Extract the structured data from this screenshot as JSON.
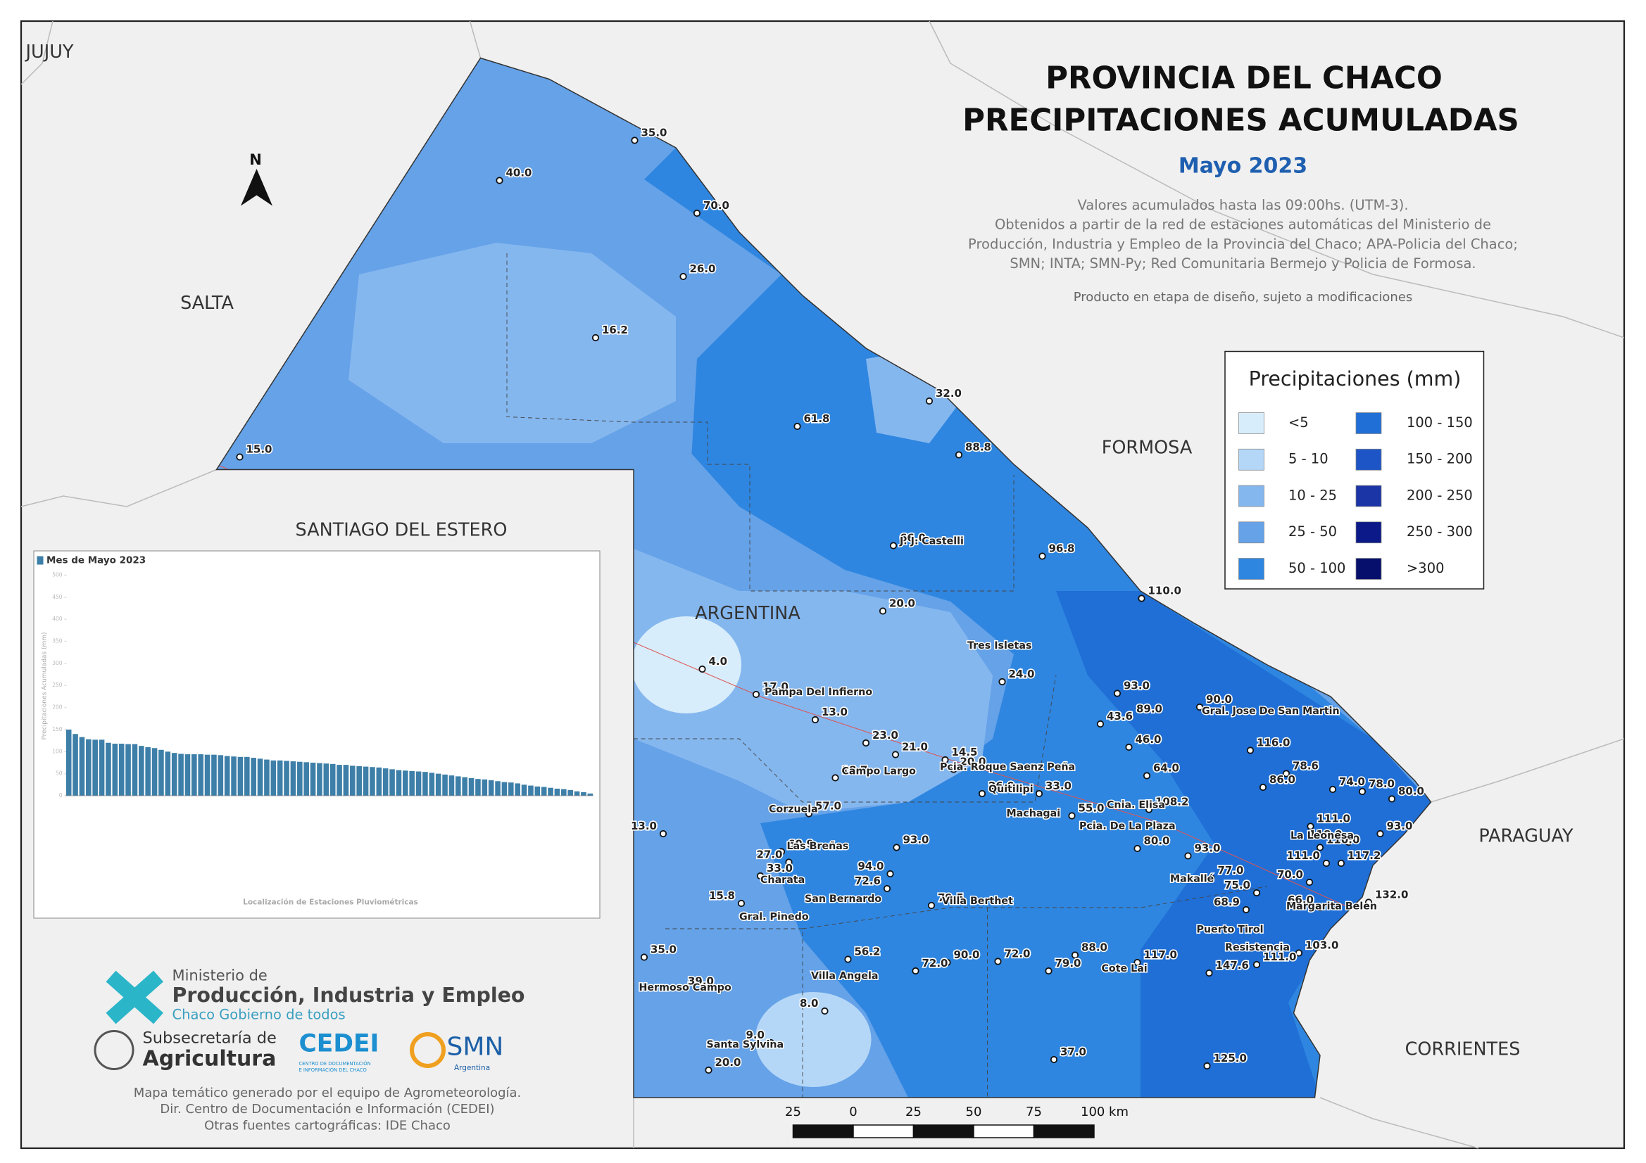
{
  "map": {
    "title": [
      "PROVINCIA DEL CHACO",
      "PRECIPITACIONES ACUMULADAS"
    ],
    "month": "Mayo 2023",
    "notes": [
      "Valores acumulados hasta las 09:00hs. (UTM-3).",
      "Obtenidos a partir de la red de estaciones automáticas del Ministerio de",
      "Producción, Industria y Empleo de la Provincia del Chaco; APA-Policia del Chaco;",
      "SMN; INTA; SMN-Py; Red Comunitaria Bermejo y Policia de Formosa."
    ],
    "disclaimer": "Producto en etapa de diseño, sujeto a modificaciones",
    "north": "N",
    "legend": {
      "title": "Precipitaciones (mm)",
      "items": [
        {
          "label": "<5",
          "color": "#d8edfb"
        },
        {
          "label": "5 - 10",
          "color": "#b5d7f7"
        },
        {
          "label": "10 - 25",
          "color": "#85b7ef"
        },
        {
          "label": "25 - 50",
          "color": "#65a2e8"
        },
        {
          "label": "50 - 100",
          "color": "#2f86e0"
        },
        {
          "label": "100 - 150",
          "color": "#1f6fd6"
        },
        {
          "label": "150 - 200",
          "color": "#1d55c6"
        },
        {
          "label": "200 - 250",
          "color": "#1b34a6"
        },
        {
          "label": "250 - 300",
          "color": "#0b1a88"
        },
        {
          "label": ">300",
          "color": "#06106c"
        }
      ]
    },
    "regions": [
      "JUJUY",
      "SALTA",
      "SANTIAGO DEL ESTERO",
      "ARGENTINA",
      "FORMOSA",
      "PARAGUAY",
      "CORRIENTES"
    ],
    "stations": [
      "35.0",
      "40.0",
      "70.0",
      "26.0",
      "16.2",
      "15.0",
      "61.8",
      "32.0",
      "88.8",
      "66.0",
      "96.8",
      "110.0",
      "20.0",
      "4.0",
      "17.0",
      "13.0",
      "24.0",
      "93.0",
      "89.0",
      "90.0",
      "43.6",
      "116.0",
      "46.0",
      "78.6",
      "86.0",
      "64.0",
      "23.0",
      "21.0",
      "14.5",
      "20.0",
      "18.7",
      "26.0",
      "33.0",
      "108.2",
      "55.0",
      "57.0",
      "74.0",
      "78.0",
      "80.0",
      "111.0",
      "118.0",
      "93.0",
      "110.0",
      "117.2",
      "111.0",
      "70.0",
      "80.0",
      "93.0",
      "77.0",
      "75.0",
      "68.9",
      "66.0",
      "132.0",
      "93.0",
      "60.9",
      "27.0",
      "13.0",
      "33.0",
      "15.8",
      "94.0",
      "72.6",
      "79.5",
      "103.0",
      "111.0",
      "147.6",
      "117.0",
      "88.0",
      "79.0",
      "72.0",
      "90.0",
      "72.0",
      "56.2",
      "35.0",
      "39.0",
      "8.0",
      "9.0",
      "20.0",
      "37.0",
      "125.0"
    ],
    "towns": [
      "J. J. Castelli",
      "Tres Isletas",
      "Pampa Del Infierno",
      "Gral. Jose De San Martin",
      "Campo Largo",
      "Pcia. Roque Saenz Peña",
      "Quitilipi",
      "Machagai",
      "Cnia. Elisa",
      "Pcia. De La Plaza",
      "Corzuela",
      "La Leonesa",
      "Makallé",
      "Margarita Belen",
      "Las Breñas",
      "Charata",
      "San Bernardo",
      "Villa Berthet",
      "Gral. Pinedo",
      "Puerto Tirol",
      "Resistencia",
      "Cote Lai",
      "Villa Angela",
      "Hermoso Campo",
      "Santa Sylvina"
    ],
    "scale": [
      "25",
      "0",
      "25",
      "50",
      "75",
      "100 km"
    ],
    "logos": [
      "Ministerio de",
      "Producción, Industria y Empleo",
      "Chaco Gobierno de todos",
      "Subsecretaría de",
      "Agricultura",
      "CEDEI",
      "CENTRO DE DOCUMENTACIÓN",
      "E INFORMACIÓN DEL CHACO",
      "SMN",
      "Argentina"
    ],
    "credits": [
      "Mapa temático generado por el equipo de Agrometeorología.",
      "Dir. Centro de Documentación e Información (CEDEI)",
      "Otras fuentes cartográficas: IDE Chaco"
    ]
  },
  "chart_data": {
    "type": "bar",
    "title": "Mes de Mayo 2023",
    "ylabel": "Precipitaciones Acumuladas (mm)",
    "xlabel": "Localización de Estaciones Pluviométricas",
    "color": "#3d7fa8",
    "ylim": [
      0,
      500
    ],
    "yticks": [
      0,
      50,
      100,
      150,
      200,
      250,
      300,
      350,
      400,
      450,
      500
    ],
    "values": [
      150,
      140,
      133,
      128,
      127,
      127,
      120,
      118,
      118,
      117,
      117,
      113,
      110,
      108,
      104,
      100,
      97,
      95,
      94,
      94,
      94,
      93,
      93,
      92,
      90,
      89,
      88,
      88,
      86,
      84,
      82,
      80,
      80,
      79,
      78,
      77,
      76,
      75,
      74,
      73,
      72,
      70,
      70,
      68,
      67,
      66,
      65,
      64,
      62,
      60,
      58,
      57,
      56,
      55,
      54,
      52,
      50,
      48,
      46,
      44,
      42,
      40,
      38,
      37,
      35,
      33,
      31,
      30,
      28,
      25,
      23,
      21,
      20,
      18,
      16,
      15,
      13,
      10,
      8,
      5
    ]
  }
}
